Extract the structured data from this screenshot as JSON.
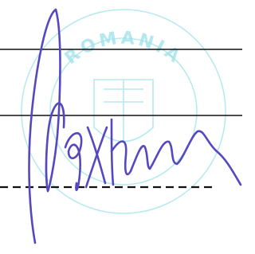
{
  "stamp": {
    "text": "ROMANIA"
  }
}
